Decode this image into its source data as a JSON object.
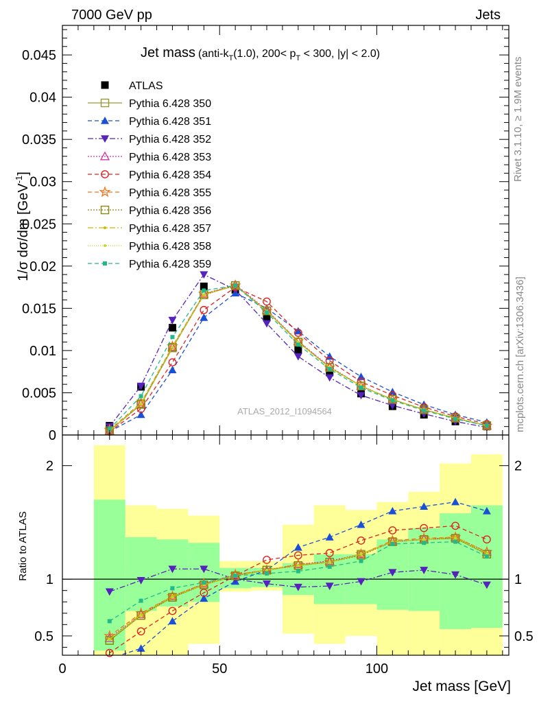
{
  "header": {
    "left": "7000 GeV pp",
    "right": "Jets"
  },
  "title": {
    "main": "Jet mass",
    "sub": "(anti-k",
    "sub_t": "T",
    "sub2": "(1.0), 200< p",
    "sub_t2": "T",
    "sub3": " < 300, |y| < 2.0)"
  },
  "side_labels": {
    "rivet": "Rivet 3.1.10, ≥ 1.9M events",
    "mcplots": "mcplots.cern.ch [arXiv:1306.3436]"
  },
  "watermark": "ATLAS_2012_I1094564",
  "axis_labels": {
    "top_y": "1/σ dσ/dm [GeV",
    "top_y_sup": "-1",
    "top_y_end": "]",
    "bottom_y": "Ratio to ATLAS",
    "x": "Jet mass [GeV]"
  },
  "colors": {
    "data": "#000000",
    "band_inner": "#99ff99",
    "band_outer": "#ffff99"
  },
  "chart_data": [
    {
      "type": "line",
      "panel": "main",
      "xlim": [
        0,
        142
      ],
      "ylim": [
        0,
        0.0485
      ],
      "y_ticks": [
        0,
        0.005,
        0.01,
        0.015,
        0.02,
        0.025,
        0.03,
        0.035,
        0.04,
        0.045
      ],
      "y_tick_labels": [
        "0",
        "0.005",
        "0.01",
        "0.015",
        "0.02",
        "0.025",
        "0.03",
        "0.035",
        "0.04",
        "0.045"
      ],
      "x": [
        15,
        25,
        35,
        45,
        55,
        65,
        75,
        85,
        95,
        105,
        115,
        125,
        135
      ],
      "series": [
        {
          "name": "ATLAS",
          "color": "#000000",
          "marker": "square-filled",
          "dash": "none",
          "line": false,
          "values": [
            0.0011,
            0.0057,
            0.0127,
            0.0176,
            0.0172,
            0.0139,
            0.0101,
            0.0074,
            0.0049,
            0.0034,
            0.0024,
            0.0016,
            0.001
          ]
        },
        {
          "name": "Pythia 6.428 350",
          "color": "#999933",
          "marker": "square-open",
          "dash": "none",
          "line": true,
          "values": [
            0.0005,
            0.0036,
            0.0103,
            0.0166,
            0.0177,
            0.0147,
            0.011,
            0.008,
            0.0058,
            0.0042,
            0.003,
            0.002,
            0.0011
          ]
        },
        {
          "name": "Pythia 6.428 351",
          "color": "#1a4fd6",
          "marker": "triangle-up-filled",
          "dash": "6,4",
          "line": true,
          "values": [
            0.0004,
            0.0024,
            0.0077,
            0.0139,
            0.0168,
            0.015,
            0.0123,
            0.0093,
            0.0069,
            0.0051,
            0.0036,
            0.0024,
            0.0015
          ]
        },
        {
          "name": "Pythia 6.428 352",
          "color": "#5522bb",
          "marker": "triangle-down-filled",
          "dash": "8,3,2,3",
          "line": true,
          "values": [
            0.001,
            0.0058,
            0.0136,
            0.019,
            0.0172,
            0.0132,
            0.0093,
            0.0068,
            0.0047,
            0.0035,
            0.0025,
            0.0016,
            0.0009
          ]
        },
        {
          "name": "Pythia 6.428 353",
          "color": "#cc33aa",
          "marker": "triangle-up-open",
          "dash": "2,2",
          "line": true,
          "values": [
            0.0005,
            0.0037,
            0.0104,
            0.0167,
            0.0178,
            0.0148,
            0.0111,
            0.0081,
            0.0058,
            0.0042,
            0.003,
            0.002,
            0.0011
          ]
        },
        {
          "name": "Pythia 6.428 354",
          "color": "#dd2222",
          "marker": "circle-open",
          "dash": "6,4",
          "line": true,
          "values": [
            0.0004,
            0.0031,
            0.0086,
            0.0148,
            0.0175,
            0.0158,
            0.0121,
            0.0088,
            0.0063,
            0.0047,
            0.0033,
            0.0022,
            0.0013
          ]
        },
        {
          "name": "Pythia 6.428 355",
          "color": "#ee7722",
          "marker": "star-open",
          "dash": "6,4",
          "line": true,
          "values": [
            0.0006,
            0.0038,
            0.0105,
            0.0167,
            0.0177,
            0.0147,
            0.0111,
            0.008,
            0.0058,
            0.0042,
            0.003,
            0.002,
            0.0011
          ]
        },
        {
          "name": "Pythia 6.428 356",
          "color": "#888811",
          "marker": "square-open",
          "dash": "2,2",
          "line": true,
          "values": [
            0.0005,
            0.0037,
            0.0104,
            0.0166,
            0.0177,
            0.0147,
            0.011,
            0.008,
            0.0058,
            0.0042,
            0.003,
            0.002,
            0.0011
          ]
        },
        {
          "name": "Pythia 6.428 357",
          "color": "#ccbb00",
          "marker": "dot",
          "dash": "8,3,2,3",
          "line": true,
          "values": [
            0.0005,
            0.0037,
            0.0104,
            0.0166,
            0.0177,
            0.0147,
            0.011,
            0.008,
            0.0058,
            0.0042,
            0.003,
            0.002,
            0.0011
          ]
        },
        {
          "name": "Pythia 6.428 358",
          "color": "#bbdd22",
          "marker": "dot",
          "dash": "1,2",
          "line": true,
          "values": [
            0.0005,
            0.0037,
            0.0104,
            0.0166,
            0.0177,
            0.0147,
            0.011,
            0.008,
            0.0058,
            0.0042,
            0.003,
            0.002,
            0.0011
          ]
        },
        {
          "name": "Pythia 6.428 359",
          "color": "#22bb88",
          "marker": "square-small-filled",
          "dash": "6,4",
          "line": true,
          "values": [
            0.0007,
            0.0046,
            0.0116,
            0.0171,
            0.0177,
            0.0145,
            0.0107,
            0.0078,
            0.0056,
            0.0041,
            0.0029,
            0.0019,
            0.0011
          ]
        }
      ]
    },
    {
      "type": "line",
      "panel": "ratio",
      "xlim": [
        0,
        142
      ],
      "ylim": [
        0.33,
        2.27
      ],
      "y_ticks": [
        0.5,
        1,
        2
      ],
      "y_tick_labels": [
        "0.5",
        "1",
        "2"
      ],
      "x_ticks": [
        0,
        50,
        100
      ],
      "x_tick_labels": [
        "0",
        "50",
        "100"
      ],
      "band_bins": [
        10,
        20,
        30,
        40,
        50,
        60,
        70,
        80,
        90,
        100,
        110,
        120,
        130,
        140
      ],
      "band_inner": [
        [
          0.37,
          1.7
        ],
        [
          0.72,
          1.37
        ],
        [
          0.76,
          1.35
        ],
        [
          0.8,
          1.32
        ],
        [
          0.92,
          1.1
        ],
        [
          0.93,
          1.1
        ],
        [
          0.86,
          1.14
        ],
        [
          0.78,
          1.22
        ],
        [
          0.78,
          1.22
        ],
        [
          0.73,
          1.35
        ],
        [
          0.72,
          1.45
        ],
        [
          0.56,
          1.58
        ],
        [
          0.57,
          1.65
        ]
      ],
      "band_outer": [
        [
          0.33,
          2.18
        ],
        [
          0.33,
          1.65
        ],
        [
          0.33,
          1.62
        ],
        [
          0.43,
          1.56
        ],
        [
          0.89,
          1.16
        ],
        [
          0.9,
          1.16
        ],
        [
          0.52,
          1.48
        ],
        [
          0.43,
          1.65
        ],
        [
          0.5,
          1.61
        ],
        [
          0.33,
          1.68
        ],
        [
          0.33,
          1.77
        ],
        [
          0.33,
          2.02
        ],
        [
          0.33,
          2.1
        ]
      ],
      "reference_line": 1,
      "x": [
        15,
        25,
        35,
        45,
        55,
        65,
        75,
        85,
        95,
        105,
        115,
        125,
        135
      ],
      "series": [
        {
          "name": "Pythia 6.428 350",
          "values": [
            0.46,
            0.68,
            0.84,
            0.95,
            1.03,
            1.08,
            1.12,
            1.15,
            1.22,
            1.33,
            1.35,
            1.36,
            1.22
          ]
        },
        {
          "name": "Pythia 6.428 351",
          "values": [
            0.3,
            0.39,
            0.63,
            0.83,
            0.98,
            1.08,
            1.28,
            1.37,
            1.48,
            1.6,
            1.64,
            1.68,
            1.6
          ]
        },
        {
          "name": "Pythia 6.428 352",
          "values": [
            0.89,
            0.99,
            1.09,
            1.09,
            1.0,
            0.96,
            0.93,
            0.94,
            0.98,
            1.06,
            1.08,
            1.04,
            0.95
          ]
        },
        {
          "name": "Pythia 6.428 353",
          "values": [
            0.48,
            0.69,
            0.85,
            0.96,
            1.04,
            1.08,
            1.13,
            1.16,
            1.22,
            1.33,
            1.35,
            1.37,
            1.24
          ]
        },
        {
          "name": "Pythia 6.428 354",
          "values": [
            0.35,
            0.54,
            0.72,
            0.88,
            1.03,
            1.17,
            1.21,
            1.23,
            1.34,
            1.43,
            1.45,
            1.47,
            1.35
          ]
        },
        {
          "name": "Pythia 6.428 355",
          "values": [
            0.5,
            0.7,
            0.85,
            0.96,
            1.04,
            1.08,
            1.13,
            1.15,
            1.22,
            1.34,
            1.36,
            1.37,
            1.24
          ]
        },
        {
          "name": "Pythia 6.428 356",
          "values": [
            0.46,
            0.68,
            0.84,
            0.95,
            1.03,
            1.08,
            1.12,
            1.15,
            1.21,
            1.33,
            1.35,
            1.36,
            1.22
          ]
        },
        {
          "name": "Pythia 6.428 357",
          "values": [
            0.47,
            0.69,
            0.85,
            0.95,
            1.03,
            1.08,
            1.12,
            1.15,
            1.22,
            1.33,
            1.35,
            1.37,
            1.23
          ]
        },
        {
          "name": "Pythia 6.428 358",
          "values": [
            0.47,
            0.68,
            0.84,
            0.95,
            1.03,
            1.08,
            1.12,
            1.15,
            1.22,
            1.33,
            1.35,
            1.36,
            1.22
          ]
        },
        {
          "name": "Pythia 6.428 359",
          "values": [
            0.63,
            0.81,
            0.92,
            0.97,
            1.03,
            1.05,
            1.07,
            1.11,
            1.16,
            1.31,
            1.32,
            1.33,
            1.2
          ]
        }
      ]
    }
  ]
}
